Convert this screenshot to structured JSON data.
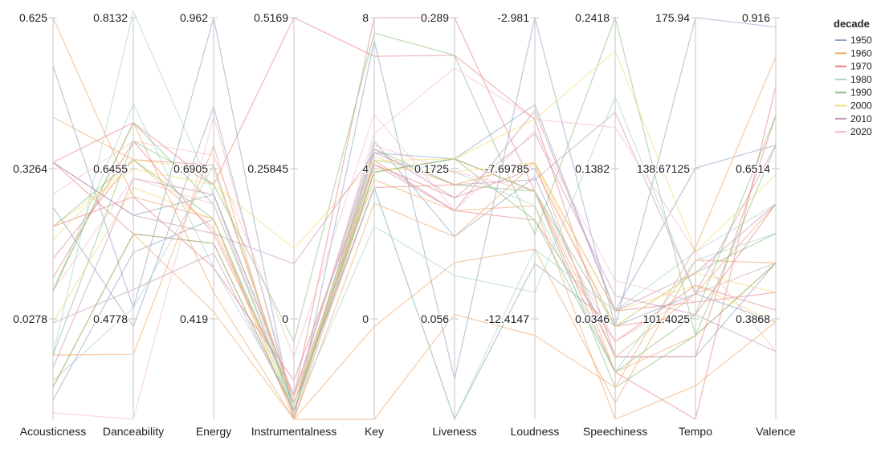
{
  "chart_data": {
    "type": "parallel-coordinates",
    "legend": {
      "title": "decade",
      "placement": "top-right",
      "entries": [
        {
          "label": "1950",
          "color": "#8ea3c2"
        },
        {
          "label": "1960",
          "color": "#f0a86a"
        },
        {
          "label": "1970",
          "color": "#e78585"
        },
        {
          "label": "1980",
          "color": "#a9d3cc"
        },
        {
          "label": "1990",
          "color": "#8cc07e"
        },
        {
          "label": "2000",
          "color": "#f3dc73"
        },
        {
          "label": "2010",
          "color": "#c998b8"
        },
        {
          "label": "2020",
          "color": "#f7bcc6"
        }
      ]
    },
    "dimensions": [
      {
        "name": "Acousticness",
        "range": [
          0,
          0.625
        ],
        "ticks": [
          "0.625",
          "0.3264",
          "0.0278"
        ]
      },
      {
        "name": "Danceability",
        "range": [
          0.38,
          0.8132
        ],
        "ticks": [
          "0.8132",
          "0.6455",
          "0.4778"
        ]
      },
      {
        "name": "Energy",
        "range": [
          0.14,
          0.962
        ],
        "ticks": [
          "0.962",
          "0.6905",
          "0.419"
        ]
      },
      {
        "name": "Instrumentalness",
        "range": [
          0,
          0.5169
        ],
        "ticks": [
          "0.5169",
          "0.25845",
          "0"
        ]
      },
      {
        "name": "Key",
        "range": [
          -2.4,
          8
        ],
        "ticks": [
          "8",
          "4",
          "0"
        ]
      },
      {
        "name": "Liveness",
        "range": [
          -0.021,
          0.289
        ],
        "ticks": [
          "0.289",
          "0.1725",
          "0.056"
        ]
      },
      {
        "name": "Loudness",
        "range": [
          -16.9,
          -2.981
        ],
        "ticks": [
          "-2.981",
          "-7.69785",
          "-12.4147"
        ]
      },
      {
        "name": "Speechiness",
        "range": [
          -0.0208,
          0.2418
        ],
        "ticks": [
          "0.2418",
          "0.1382",
          "0.0346"
        ]
      },
      {
        "name": "Tempo",
        "range": [
          80,
          175.94
        ],
        "ticks": [
          "175.94",
          "138.67125",
          "101.4025"
        ]
      },
      {
        "name": "Valence",
        "range": [
          0.235,
          0.916
        ],
        "ticks": [
          "0.916",
          "0.6514",
          "0.3868"
        ]
      }
    ],
    "series": [
      {
        "group": "1950",
        "values": [
          0.55,
          0.5,
          0.962,
          0.0,
          7.4,
          0.01,
          -2.981,
          0.04,
          175.94,
          0.9
        ]
      },
      {
        "group": "1950",
        "values": [
          0.33,
          0.48,
          0.78,
          0.01,
          4.5,
          0.18,
          -6.0,
          0.05,
          140.0,
          0.7
        ]
      },
      {
        "group": "1950",
        "values": [
          0.03,
          0.56,
          0.55,
          0.02,
          3.6,
          -0.021,
          -11.5,
          0.04,
          110.0,
          0.4
        ]
      },
      {
        "group": "1950",
        "values": [
          0.4,
          0.6,
          0.6,
          0.03,
          4.8,
          0.12,
          -8.5,
          0.02,
          95.0,
          0.5
        ]
      },
      {
        "group": "1960",
        "values": [
          0.625,
          0.62,
          0.55,
          0.0,
          3.2,
          0.12,
          -8.0,
          0.01,
          100.0,
          0.5
        ]
      },
      {
        "group": "1960",
        "values": [
          0.47,
          0.66,
          0.53,
          0.03,
          3.8,
          0.14,
          -9.5,
          -0.0208,
          88.0,
          0.4
        ]
      },
      {
        "group": "1960",
        "values": [
          0.05,
          0.58,
          0.36,
          0.0,
          -2.4,
          0.06,
          -14.0,
          0.0,
          121.0,
          0.85
        ]
      },
      {
        "group": "1960",
        "values": [
          0.1,
          0.45,
          0.7,
          0.0,
          0.0,
          0.1,
          -11.0,
          -0.01,
          118.0,
          0.5
        ]
      },
      {
        "group": "1960",
        "values": [
          0.2,
          0.7,
          0.4,
          0.0,
          4.0,
          0.18,
          -9.0,
          0.02,
          110.0,
          0.6
        ]
      },
      {
        "group": "1970",
        "values": [
          0.4,
          0.7,
          0.62,
          0.5169,
          7.0,
          0.26,
          -6.5,
          0.02,
          95.0,
          0.75
        ]
      },
      {
        "group": "1970",
        "values": [
          0.22,
          0.68,
          0.52,
          0.03,
          8.0,
          0.289,
          -9.0,
          0.01,
          80.0,
          0.8
        ]
      },
      {
        "group": "1970",
        "values": [
          0.3,
          0.62,
          0.45,
          0.05,
          4.2,
          0.15,
          -8.2,
          0.04,
          105.0,
          0.6
        ]
      },
      {
        "group": "1970",
        "values": [
          0.25,
          0.66,
          0.66,
          0.02,
          3.6,
          0.16,
          -8.0,
          0.05,
          108.0,
          0.45
        ]
      },
      {
        "group": "1970",
        "values": [
          0.4,
          0.58,
          0.5,
          0.01,
          4.3,
          0.14,
          -10.0,
          0.03,
          112.0,
          0.42
        ]
      },
      {
        "group": "1980",
        "values": [
          0.1,
          0.82,
          0.6,
          0.01,
          2.6,
          0.09,
          -12.5,
          0.19,
          110.0,
          0.5
        ]
      },
      {
        "group": "1980",
        "values": [
          0.06,
          0.5,
          0.66,
          0.01,
          3.6,
          -0.021,
          -11.0,
          0.05,
          120.0,
          0.6
        ]
      },
      {
        "group": "1980",
        "values": [
          0.2,
          0.72,
          0.45,
          0.02,
          4.3,
          0.17,
          -9.5,
          0.01,
          118.0,
          0.55
        ]
      },
      {
        "group": "1990",
        "values": [
          0.1,
          0.68,
          0.62,
          0.1,
          7.6,
          0.26,
          -10.5,
          0.2418,
          100.0,
          0.7
        ]
      },
      {
        "group": "1990",
        "values": [
          0.2,
          0.7,
          0.58,
          0.02,
          4.0,
          0.18,
          -10.0,
          0.01,
          105.0,
          0.75
        ]
      },
      {
        "group": "1990",
        "values": [
          0.05,
          0.58,
          0.5,
          0.01,
          4.6,
          0.16,
          -9.0,
          0.0,
          100.0,
          0.5
        ]
      },
      {
        "group": "1990",
        "values": [
          0.3,
          0.66,
          0.55,
          0.01,
          4.0,
          0.18,
          -9.0,
          0.04,
          115.0,
          0.55
        ]
      },
      {
        "group": "2000",
        "values": [
          0.3,
          0.65,
          0.62,
          0.22,
          4.3,
          0.18,
          -6.5,
          0.22,
          120.0,
          0.65
        ]
      },
      {
        "group": "2000",
        "values": [
          0.15,
          0.63,
          0.55,
          0.01,
          4.4,
          0.16,
          -8.0,
          0.04,
          115.0,
          0.45
        ]
      },
      {
        "group": "2000",
        "values": [
          0.28,
          0.66,
          0.65,
          0.02,
          4.1,
          0.17,
          -8.0,
          0.05,
          112.0,
          0.4
        ]
      },
      {
        "group": "2010",
        "values": [
          0.4,
          0.6,
          0.52,
          0.2,
          4.5,
          0.16,
          -8.6,
          0.18,
          110.0,
          0.7
        ]
      },
      {
        "group": "2010",
        "values": [
          0.15,
          0.52,
          0.48,
          0.01,
          4.2,
          0.14,
          -6.2,
          0.05,
          115.0,
          0.6
        ]
      },
      {
        "group": "2010",
        "values": [
          0.08,
          0.64,
          0.6,
          0.03,
          4.6,
          0.15,
          -7.0,
          0.06,
          105.0,
          0.35
        ]
      },
      {
        "group": "2020",
        "values": [
          0.01,
          0.38,
          0.76,
          0.02,
          5.0,
          0.25,
          -6.5,
          0.17,
          120.0,
          0.35
        ]
      },
      {
        "group": "2020",
        "values": [
          0.35,
          0.68,
          0.68,
          0.08,
          5.5,
          0.14,
          -6.9,
          0.07,
          108.0,
          0.45
        ]
      },
      {
        "group": "2020",
        "values": [
          0.2,
          0.64,
          0.58,
          0.03,
          4.7,
          0.17,
          -9.0,
          0.03,
          110.0,
          0.5
        ]
      }
    ]
  }
}
